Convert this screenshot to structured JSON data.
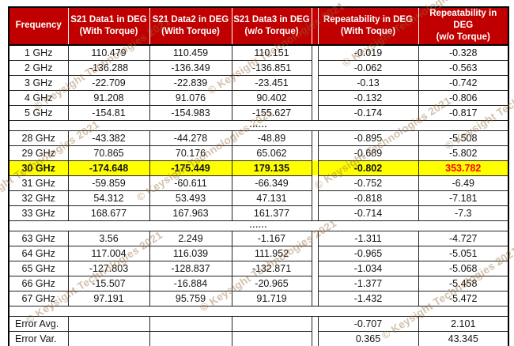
{
  "watermark": {
    "text": "© Keysight Technologies 2021"
  },
  "table": {
    "dots": "......",
    "header": [
      {
        "line1": "Frequency",
        "line2": ""
      },
      {
        "line1": "S21 Data1 in DEG",
        "line2": "(With Torque)"
      },
      {
        "line1": "S21 Data2 in DEG",
        "line2": "(With Torque)"
      },
      {
        "line1": "S21 Data3 in DEG",
        "line2": "(w/o Torque)"
      },
      {
        "line1": "Repeatability in DEG",
        "line2": "(With Toque)"
      },
      {
        "line1": "Repeatability in DEG",
        "line2": "(w/o Torque)"
      }
    ],
    "rows": [
      {
        "type": "data",
        "cells": [
          "1 GHz",
          "110.479",
          "110.459",
          "110.151",
          "-0.019",
          "-0.328"
        ]
      },
      {
        "type": "data",
        "cells": [
          "2 GHz",
          "-136.288",
          "-136.349",
          "-136.851",
          "-0.062",
          "-0.563"
        ]
      },
      {
        "type": "data",
        "cells": [
          "3 GHz",
          "-22.709",
          "-22.839",
          "-23.451",
          "-0.13",
          "-0.742"
        ]
      },
      {
        "type": "data",
        "cells": [
          "4 GHz",
          "91.208",
          "91.076",
          "90.402",
          "-0.132",
          "-0.806"
        ]
      },
      {
        "type": "data",
        "cells": [
          "5 GHz",
          "-154.81",
          "-154.983",
          "-155.627",
          "-0.174",
          "-0.817"
        ]
      },
      {
        "type": "dots"
      },
      {
        "type": "data",
        "cells": [
          "28 GHz",
          "-43.382",
          "-44.278",
          "-48.89",
          "-0.895",
          "-5.508"
        ]
      },
      {
        "type": "data",
        "cells": [
          "29 GHz",
          "70.865",
          "70.176",
          "65.062",
          "-0.689",
          "-5.802"
        ]
      },
      {
        "type": "highlight",
        "cells": [
          "30 GHz",
          "-174.648",
          "-175.449",
          "179.135",
          "-0.802",
          "353.782"
        ]
      },
      {
        "type": "data",
        "cells": [
          "31 GHz",
          "-59.859",
          "-60.611",
          "-66.349",
          "-0.752",
          "-6.49"
        ]
      },
      {
        "type": "data",
        "cells": [
          "32 GHz",
          "54.312",
          "53.493",
          "47.131",
          "-0.818",
          "-7.181"
        ]
      },
      {
        "type": "data",
        "cells": [
          "33 GHz",
          "168.677",
          "167.963",
          "161.377",
          "-0.714",
          "-7.3"
        ]
      },
      {
        "type": "dots"
      },
      {
        "type": "data",
        "cells": [
          "63 GHz",
          "3.56",
          "2.249",
          "-1.167",
          "-1.311",
          "-4.727"
        ]
      },
      {
        "type": "data",
        "cells": [
          "64 GHz",
          "117.004",
          "116.039",
          "111.952",
          "-0.965",
          "-5.051"
        ]
      },
      {
        "type": "data",
        "cells": [
          "65 GHz",
          "-127.803",
          "-128.837",
          "-132.871",
          "-1.034",
          "-5.068"
        ]
      },
      {
        "type": "data",
        "cells": [
          "66 GHz",
          "-15.507",
          "-16.884",
          "-20.965",
          "-1.377",
          "-5.458"
        ]
      },
      {
        "type": "data",
        "cells": [
          "67 GHz",
          "97.191",
          "95.759",
          "91.719",
          "-1.432",
          "-5.472"
        ]
      },
      {
        "type": "blank"
      },
      {
        "type": "error",
        "cells": [
          "Error Avg.",
          "",
          "",
          "",
          "-0.707",
          "2.101"
        ]
      },
      {
        "type": "error",
        "cells": [
          "Error Var.",
          "",
          "",
          "",
          "0.365",
          "43.345"
        ]
      }
    ]
  }
}
